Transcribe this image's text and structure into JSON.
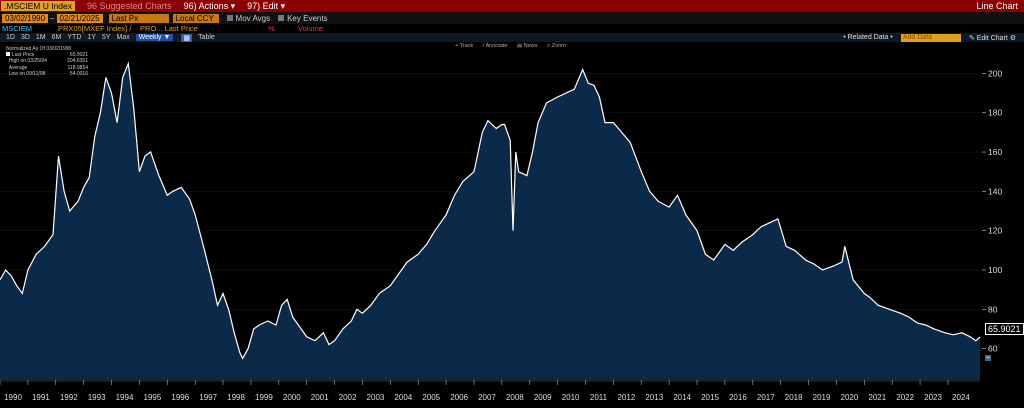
{
  "topbar": {
    "ticker": ".MSCIEM U Index",
    "suggested": "96 Suggested Charts",
    "actions": "96) Actions ▾",
    "edit": "97) Edit ▾",
    "title": "Line Chart"
  },
  "controls": {
    "start_date": "03/02/1990",
    "end_date": "02/21/2025",
    "price_field": "Last Px",
    "currency": "Local CCY",
    "mov_avgs": "Mov Avgs",
    "key_events": "Key Events"
  },
  "series_row": {
    "name": "MSCIEM",
    "field1": "PRX05[MXEF Index] /",
    "field2": "PRO... Last Price",
    "pct": "%",
    "volume": "Volume"
  },
  "toolbar": {
    "periods": [
      "1D",
      "3D",
      "1M",
      "6M",
      "YTD",
      "1Y",
      "5Y",
      "Max"
    ],
    "frequency": "Weekly ▼",
    "table": "Table",
    "related": "• Related Data •",
    "search_placeholder": "Add Data",
    "edit_chart": "✎ Edit Chart ⚙"
  },
  "tools": [
    "+ Track",
    "/ Annotate",
    "▤ News",
    "⌕ Zoom"
  ],
  "legend": {
    "header": "Normalized As Of 03/02/1990",
    "rows": [
      {
        "label": "Last Price",
        "value": "65.9021"
      },
      {
        "label": "High on 03/25/94",
        "value": "204.6351"
      },
      {
        "label": "Average",
        "value": "118.9854"
      },
      {
        "label": "Low on 09/11/98",
        "value": "54.0016"
      }
    ]
  },
  "last_value_label": "65.9021",
  "colors": {
    "line": "#ffffff",
    "fill": "#0b2a4a",
    "background": "#000000",
    "topbar": "#8b0000",
    "field": "#e08a1e"
  },
  "chart_data": {
    "type": "area",
    "title": "",
    "xlabel": "",
    "ylabel": "",
    "x_range": [
      1990.0,
      2025.15
    ],
    "ylim": [
      44,
      216
    ],
    "yticks": [
      60,
      80,
      100,
      120,
      140,
      160,
      180,
      200
    ],
    "xticks": [
      "1990",
      "1991",
      "1992",
      "1993",
      "1994",
      "1995",
      "1996",
      "1997",
      "1998",
      "1999",
      "2000",
      "2001",
      "2002",
      "2003",
      "2004",
      "2005",
      "2006",
      "2007",
      "2008",
      "2009",
      "2010",
      "2011",
      "2012",
      "2013",
      "2014",
      "2015",
      "2016",
      "2017",
      "2018",
      "2019",
      "2020",
      "2021",
      "2022",
      "2023",
      "2024"
    ],
    "series": [
      {
        "values_note": "",
        "x": [
          1990.0,
          1990.2,
          1990.4,
          1990.6,
          1990.8,
          1991.0,
          1991.3,
          1991.6,
          1991.9,
          1992.1,
          1992.3,
          1992.5,
          1992.8,
          1993.0,
          1993.2,
          1993.4,
          1993.6,
          1993.8,
          1994.0,
          1994.2,
          1994.4,
          1994.6,
          1994.8,
          1995.0,
          1995.2,
          1995.4,
          1995.7,
          1996.0,
          1996.2,
          1996.5,
          1996.8,
          1997.0,
          1997.3,
          1997.6,
          1997.8,
          1998.0,
          1998.2,
          1998.4,
          1998.6,
          1998.7,
          1998.9,
          1999.1,
          1999.3,
          1999.6,
          1999.9,
          2000.1,
          2000.3,
          2000.5,
          2000.8,
          2001.0,
          2001.3,
          2001.6,
          2001.8,
          2002.0,
          2002.3,
          2002.6,
          2002.8,
          2003.0,
          2003.3,
          2003.6,
          2004.0,
          2004.3,
          2004.6,
          2005.0,
          2005.3,
          2005.6,
          2006.0,
          2006.3,
          2006.6,
          2007.0,
          2007.3,
          2007.5,
          2007.8,
          2008.0,
          2008.1,
          2008.2,
          2008.3,
          2008.4,
          2008.5,
          2008.6,
          2008.9,
          2009.1,
          2009.3,
          2009.6,
          2010.0,
          2010.3,
          2010.6,
          2010.9,
          2011.1,
          2011.3,
          2011.5,
          2011.7,
          2012.0,
          2012.3,
          2012.6,
          2013.0,
          2013.3,
          2013.6,
          2014.0,
          2014.3,
          2014.6,
          2015.0,
          2015.3,
          2015.6,
          2016.0,
          2016.3,
          2016.6,
          2017.0,
          2017.3,
          2017.6,
          2017.9,
          2018.2,
          2018.5,
          2018.9,
          2019.2,
          2019.5,
          2019.9,
          2020.2,
          2020.3,
          2020.6,
          2021.0,
          2021.2,
          2021.5,
          2021.9,
          2022.3,
          2022.6,
          2022.9,
          2023.2,
          2023.5,
          2023.9,
          2024.2,
          2024.5,
          2024.8,
          2025.0,
          2025.15
        ],
        "y": [
          95,
          100,
          97,
          92,
          88,
          100,
          108,
          112,
          118,
          158,
          140,
          130,
          135,
          142,
          147,
          168,
          180,
          198,
          190,
          175,
          198,
          205,
          182,
          150,
          158,
          160,
          148,
          138,
          140,
          142,
          136,
          128,
          112,
          95,
          82,
          88,
          80,
          68,
          58,
          55,
          60,
          70,
          72,
          74,
          72,
          82,
          85,
          76,
          70,
          66,
          64,
          68,
          62,
          64,
          70,
          74,
          80,
          78,
          82,
          88,
          92,
          98,
          104,
          108,
          113,
          120,
          128,
          138,
          145,
          150,
          170,
          176,
          172,
          174,
          174,
          170,
          166,
          120,
          160,
          150,
          148,
          160,
          175,
          185,
          188,
          190,
          192,
          202,
          195,
          194,
          188,
          175,
          175,
          170,
          165,
          150,
          140,
          135,
          132,
          138,
          128,
          120,
          108,
          105,
          113,
          110,
          114,
          118,
          122,
          124,
          126,
          112,
          110,
          105,
          103,
          100,
          102,
          104,
          112,
          95,
          88,
          86,
          82,
          80,
          78,
          76,
          73,
          72,
          70,
          68,
          67,
          68,
          66,
          64,
          65.9
        ]
      }
    ]
  }
}
